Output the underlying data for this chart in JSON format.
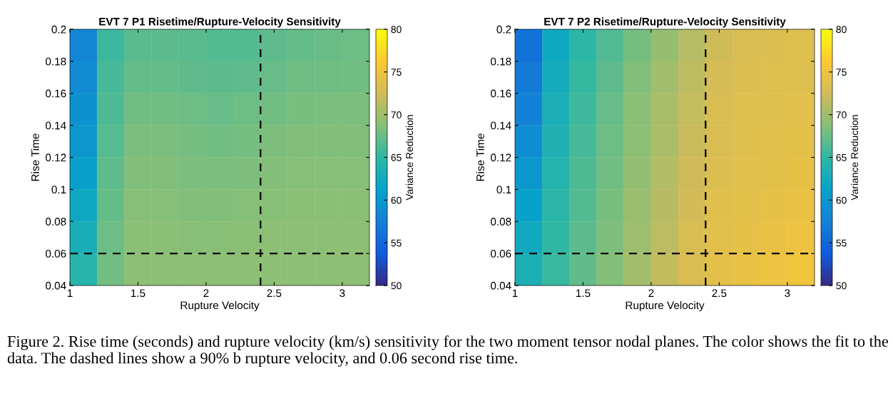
{
  "chart_data": [
    {
      "type": "heatmap",
      "title": "EVT 7 P1 Risetime/Rupture-Velocity Sensitivity",
      "xlabel": "Rupture Velocity",
      "ylabel": "Rise Time",
      "clabel": "Variance Reduction",
      "x": [
        1.1,
        1.3,
        1.5,
        1.7,
        1.9,
        2.1,
        2.3,
        2.5,
        2.7,
        2.9,
        3.1
      ],
      "y": [
        0.19,
        0.17,
        0.15,
        0.13,
        0.11,
        0.09,
        0.07,
        0.05
      ],
      "cells": [
        [
          57.9,
          65.5,
          66.8,
          66.9,
          66.8,
          66.6,
          66.6,
          67,
          67.3,
          67.5,
          67.6
        ],
        [
          58.6,
          66,
          67.3,
          67.3,
          67,
          66.9,
          67.1,
          67.4,
          67.7,
          67.8,
          67.9
        ],
        [
          59.3,
          66.4,
          67.9,
          67.9,
          67.6,
          67.4,
          67.6,
          67.9,
          68.1,
          68.2,
          68.2
        ],
        [
          59.9,
          66.7,
          68.2,
          68.2,
          68,
          67.9,
          68,
          68.3,
          68.4,
          68.5,
          68.5
        ],
        [
          60.8,
          67,
          68.5,
          68.5,
          68.2,
          68.2,
          68.3,
          68.6,
          68.7,
          68.8,
          68.7
        ],
        [
          62,
          67.3,
          68.8,
          68.7,
          68.5,
          68.5,
          68.7,
          68.8,
          68.9,
          68.9,
          68.9
        ],
        [
          63.1,
          67.6,
          68.9,
          68.9,
          68.8,
          68.8,
          68.9,
          69,
          69,
          69,
          69
        ],
        [
          64.4,
          67.9,
          69,
          69,
          69,
          69,
          69,
          69,
          69,
          69,
          69
        ]
      ],
      "xlim": [
        1,
        3.2
      ],
      "xticks": [
        1,
        1.5,
        2,
        2.5,
        3
      ],
      "ylim": [
        0.04,
        0.2
      ],
      "yticks": [
        0.04,
        0.06,
        0.08,
        0.1,
        0.12,
        0.14,
        0.16,
        0.18,
        0.2
      ],
      "clim": [
        50,
        80
      ],
      "cticks": [
        50,
        55,
        60,
        65,
        70,
        75,
        80
      ],
      "ref_lines": [
        {
          "axis": "x",
          "value": 2.4,
          "color": "#000000",
          "line_style": "dashed"
        },
        {
          "axis": "y",
          "value": 0.06,
          "color": "#000000",
          "line_style": "dashed"
        }
      ],
      "annotations": [
        "Figure 2. Rise time (seconds) and rupture velocity (km/s) sensitivity for the two moment tensor nodal planes. The color shows the fit to the data. The dashed lines show a 90% b rupture velocity, and 0.06 second rise time."
      ]
    },
    {
      "type": "heatmap",
      "title": "EVT 7 P2 Risetime/Rupture-Velocity Sensitivity",
      "xlabel": "Rupture Velocity",
      "ylabel": "Rise Time",
      "clabel": "Variance Reduction",
      "x": [
        1.1,
        1.3,
        1.5,
        1.7,
        1.9,
        2.1,
        2.3,
        2.5,
        2.7,
        2.9,
        3.1
      ],
      "y": [
        0.19,
        0.17,
        0.15,
        0.13,
        0.11,
        0.09,
        0.07,
        0.05
      ],
      "cells": [
        [
          56,
          62.1,
          64.8,
          66.5,
          68,
          69.5,
          71,
          72.4,
          73.2,
          73.4,
          73.5
        ],
        [
          56.8,
          62.7,
          65.3,
          67,
          68.5,
          70,
          71.5,
          72.8,
          73.4,
          73.5,
          73.6
        ],
        [
          57.7,
          63.2,
          65.7,
          67.4,
          68.9,
          70.4,
          71.9,
          73,
          73.5,
          73.6,
          73.8
        ],
        [
          58.8,
          63.6,
          66,
          67.6,
          69.1,
          70.6,
          72.1,
          73.2,
          73.6,
          73.8,
          74
        ],
        [
          59.9,
          64.1,
          66.3,
          67.9,
          69.4,
          70.9,
          72.4,
          73.4,
          73.8,
          74,
          74.3
        ],
        [
          61.1,
          64.6,
          66.6,
          68.1,
          69.6,
          71.1,
          72.7,
          73.7,
          74,
          74.3,
          74.5
        ],
        [
          62.3,
          65,
          66.9,
          68.3,
          69.9,
          71.4,
          73,
          73.8,
          74.2,
          74.5,
          74.8
        ],
        [
          63.3,
          65.4,
          67.2,
          68.6,
          70.1,
          71.7,
          73.2,
          74,
          74.4,
          74.8,
          75.1
        ]
      ],
      "xlim": [
        1,
        3.2
      ],
      "xticks": [
        1,
        1.5,
        2,
        2.5,
        3
      ],
      "ylim": [
        0.04,
        0.2
      ],
      "yticks": [
        0.04,
        0.06,
        0.08,
        0.1,
        0.12,
        0.14,
        0.16,
        0.18,
        0.2
      ],
      "clim": [
        50,
        80
      ],
      "cticks": [
        50,
        55,
        60,
        65,
        70,
        75,
        80
      ],
      "ref_lines": [
        {
          "axis": "x",
          "value": 2.4,
          "color": "#000000",
          "line_style": "dashed"
        },
        {
          "axis": "y",
          "value": 0.06,
          "color": "#000000",
          "line_style": "dashed"
        }
      ]
    }
  ]
}
